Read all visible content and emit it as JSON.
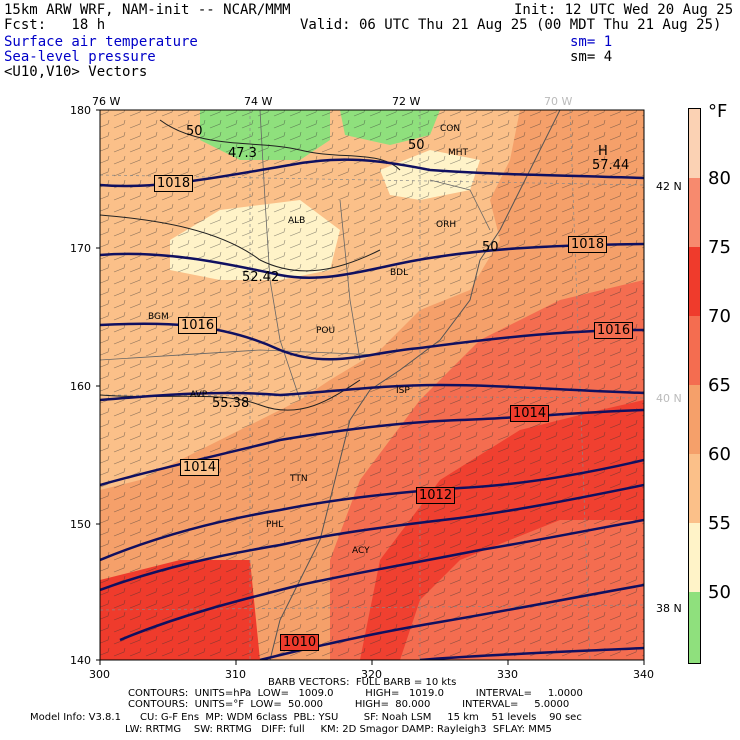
{
  "header": {
    "model": "15km ARW WRF, NAM-init -- NCAR/MMM",
    "init": "Init: 12 UTC Wed 20 Aug 25",
    "fcst": "Fcst:   18 h",
    "valid": "Valid: 06 UTC Thu 21 Aug 25 (00 MDT Thu 21 Aug 25)",
    "field1": "Surface air temperature",
    "field2": "Sea-level pressure",
    "field3": "<U10,V10> Vectors",
    "sm1": "sm= 1",
    "sm2": "sm= 4"
  },
  "axes": {
    "lon_top": [
      "76 W",
      "74 W",
      "72 W",
      "70 W"
    ],
    "lat_right": [
      "42 N",
      "40 N",
      "38 N"
    ],
    "y_ticks": [
      "180",
      "170",
      "160",
      "150",
      "140"
    ],
    "x_ticks": [
      "300",
      "310",
      "320",
      "330",
      "340"
    ]
  },
  "colorbar": {
    "unit": "°F",
    "labels": [
      "80",
      "75",
      "70",
      "65",
      "60",
      "55",
      "50"
    ],
    "colors": [
      "#fbd2b4",
      "#f78a6e",
      "#ef3b2c",
      "#f46d50",
      "#f5a06a",
      "#fbc089",
      "#fff3c8",
      "#8fe07d"
    ]
  },
  "contour_labels": {
    "isobars": [
      "1018",
      "1018",
      "1016",
      "1016",
      "1014",
      "1014",
      "1012",
      "1010"
    ],
    "isotherms": [
      "50",
      "47.3",
      "50",
      "52.42",
      "55.38",
      "50",
      "57.44"
    ],
    "stations": [
      "CON",
      "MHT",
      "ALB",
      "ORH",
      "BDL",
      "BGM",
      "POU",
      "AVP",
      "ISP",
      "TTN",
      "ACY",
      "PHL"
    ],
    "misc": [
      "H"
    ]
  },
  "footer": {
    "barb": "BARB VECTORS:  FULL BARB = 10 kts",
    "contours1": "CONTOURS:  UNITS=hPa  LOW=   1009.0          HIGH=   1019.0          INTERVAL=     1.0000",
    "contours2": "CONTOURS:  UNITS=°F  LOW=  50.000          HIGH=  80.000          INTERVAL=     5.0000",
    "model_info1": "Model Info: V3.8.1      CU: G-F Ens  MP: WDM 6class  PBL: YSU        SF: Noah LSM     15 km    51 levels    90 sec",
    "model_info2": "LW: RRTMG    SW: RRTMG   DIFF: full     KM: 2D Smagor DAMP: Rayleigh3  SFLAY: MM5"
  }
}
